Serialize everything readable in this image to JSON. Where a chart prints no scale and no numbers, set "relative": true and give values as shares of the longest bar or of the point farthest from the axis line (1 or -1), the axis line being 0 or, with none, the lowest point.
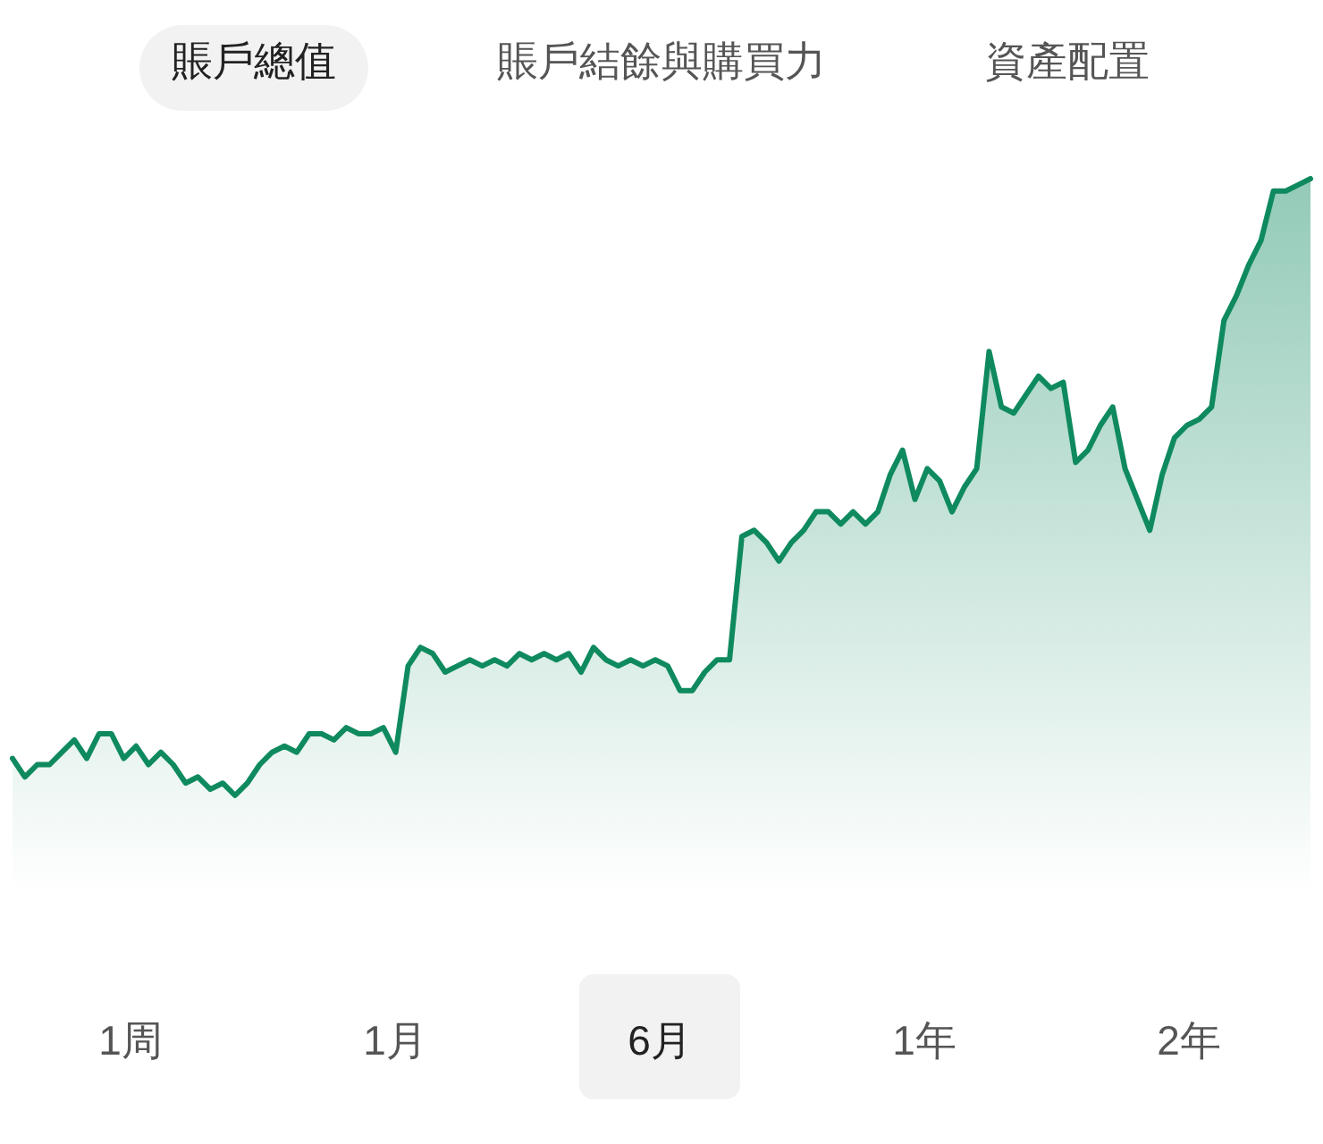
{
  "chart_data": {
    "type": "area",
    "relative": true,
    "color": "#0f8a5f",
    "annotations": [
      "賬戶總值",
      "賬戶結餘與購買力",
      "資產配置",
      "1周",
      "1月",
      "6月",
      "1年",
      "2年"
    ],
    "categories": [
      null,
      null,
      null,
      null,
      null,
      null,
      null,
      null,
      null,
      null,
      null,
      null,
      null,
      null,
      null,
      null,
      null,
      null,
      null,
      null,
      null,
      null,
      null,
      null,
      null,
      null,
      null,
      null,
      null,
      null,
      null,
      null,
      null,
      null,
      null,
      null,
      null,
      null,
      null,
      null,
      null,
      null,
      null,
      null,
      null,
      null,
      null,
      null,
      null,
      null,
      null,
      null,
      null,
      null,
      null,
      null,
      null,
      null,
      null,
      null,
      null,
      null,
      null,
      null,
      null,
      null,
      null,
      null,
      null,
      null,
      null,
      null,
      null,
      null,
      null,
      null,
      null,
      null,
      null,
      null,
      null,
      null,
      null,
      null,
      null,
      null,
      null,
      null,
      null,
      null,
      null,
      null,
      null,
      null,
      null,
      null,
      null,
      null,
      null,
      null,
      null,
      null,
      null,
      null,
      null,
      null
    ],
    "values": [
      0.06,
      0.03,
      0.05,
      0.05,
      0.07,
      0.09,
      0.06,
      0.1,
      0.1,
      0.06,
      0.08,
      0.05,
      0.07,
      0.05,
      0.02,
      0.03,
      0.01,
      0.02,
      0,
      0.02,
      0.05,
      0.07,
      0.08,
      0.07,
      0.1,
      0.1,
      0.09,
      0.11,
      0.1,
      0.1,
      0.11,
      0.07,
      0.21,
      0.24,
      0.23,
      0.2,
      0.21,
      0.22,
      0.21,
      0.22,
      0.21,
      0.23,
      0.22,
      0.23,
      0.22,
      0.23,
      0.2,
      0.24,
      0.22,
      0.21,
      0.22,
      0.21,
      0.22,
      0.21,
      0.17,
      0.17,
      0.2,
      0.22,
      0.22,
      0.42,
      0.43,
      0.41,
      0.38,
      0.41,
      0.43,
      0.46,
      0.46,
      0.44,
      0.46,
      0.44,
      0.46,
      0.52,
      0.56,
      0.48,
      0.53,
      0.51,
      0.46,
      0.5,
      0.53,
      0.72,
      0.63,
      0.62,
      0.65,
      0.68,
      0.66,
      0.67,
      0.54,
      0.56,
      0.6,
      0.63,
      0.53,
      0.48,
      0.43,
      0.52,
      0.58,
      0.6,
      0.61,
      0.63,
      0.77,
      0.81,
      0.86,
      0.9,
      0.98,
      0.98,
      0.99,
      1
    ]
  }
}
